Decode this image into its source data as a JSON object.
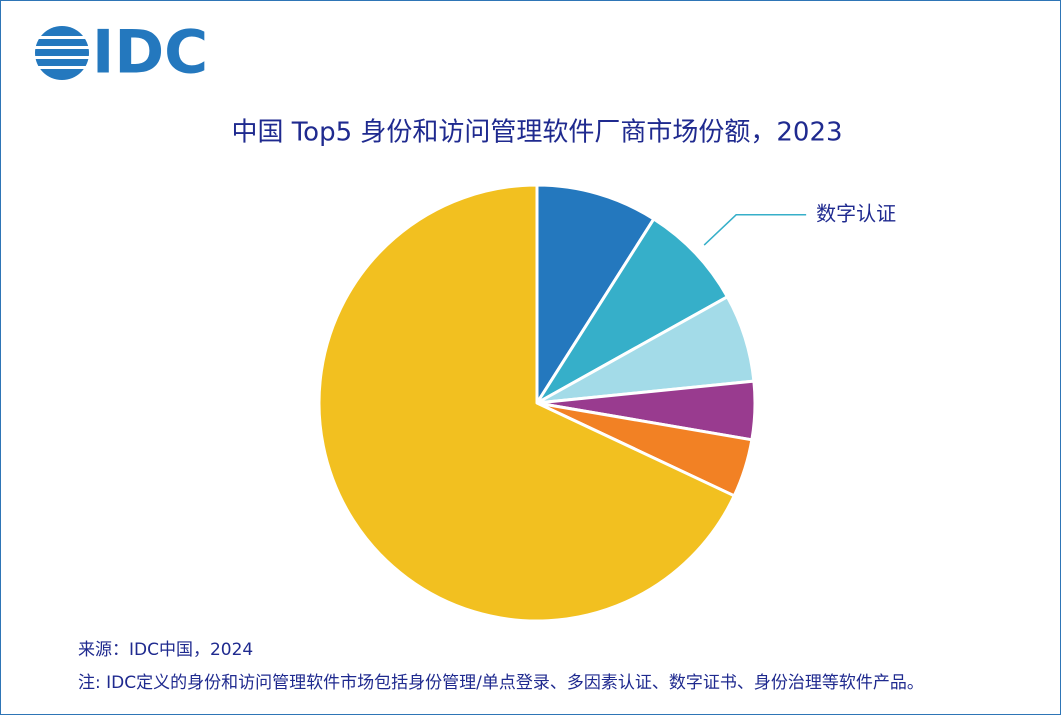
{
  "chart_data": {
    "type": "pie",
    "logo": "IDC",
    "title": "中国 Top5 身份和访问管理软件厂商市场份额，2023",
    "categories": [
      null,
      "数字认证",
      null,
      null,
      null,
      null
    ],
    "values": [
      9.0,
      7.9,
      6.5,
      4.3,
      4.3,
      68.0
    ],
    "colors": [
      "#2478be",
      "#36afc9",
      "#a3dbe8",
      "#993b8f",
      "#f28124",
      "#f2c020"
    ],
    "source": "来源：IDC中国，2024",
    "note": "注: IDC定义的身份和访问管理软件市场包括身份管理/单点登录、多因素认证、数字证书、身份治理等软件产品。"
  }
}
